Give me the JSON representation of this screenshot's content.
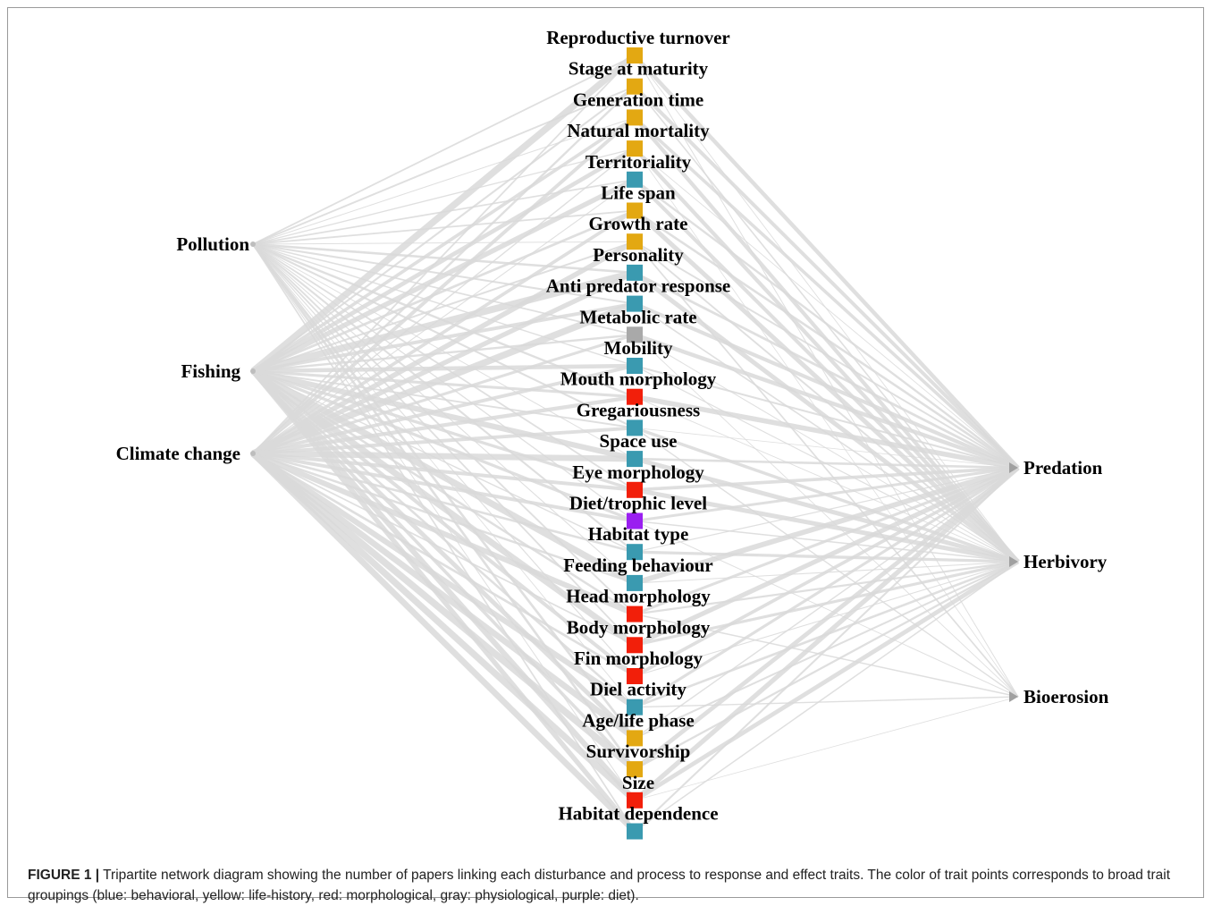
{
  "disturbances": [
    "Pollution",
    "Fishing",
    "Climate change"
  ],
  "processes": [
    "Predation",
    "Herbivory",
    "Bioerosion"
  ],
  "traits": [
    {
      "label": "Reproductive turnover",
      "group": "life-history"
    },
    {
      "label": "Stage at maturity",
      "group": "life-history"
    },
    {
      "label": "Generation time",
      "group": "life-history"
    },
    {
      "label": "Natural mortality",
      "group": "life-history"
    },
    {
      "label": "Territoriality",
      "group": "behavioral"
    },
    {
      "label": "Life span",
      "group": "life-history"
    },
    {
      "label": "Growth rate",
      "group": "life-history"
    },
    {
      "label": "Personality",
      "group": "behavioral"
    },
    {
      "label": "Anti predator response",
      "group": "behavioral"
    },
    {
      "label": "Metabolic rate",
      "group": "physiological"
    },
    {
      "label": "Mobility",
      "group": "behavioral"
    },
    {
      "label": "Mouth morphology",
      "group": "morphological"
    },
    {
      "label": "Gregariousness",
      "group": "behavioral"
    },
    {
      "label": "Space use",
      "group": "behavioral"
    },
    {
      "label": "Eye morphology",
      "group": "morphological"
    },
    {
      "label": "Diet/trophic level",
      "group": "diet"
    },
    {
      "label": "Habitat type",
      "group": "behavioral"
    },
    {
      "label": "Feeding behaviour",
      "group": "behavioral"
    },
    {
      "label": "Head morphology",
      "group": "morphological"
    },
    {
      "label": "Body morphology",
      "group": "morphological"
    },
    {
      "label": "Fin morphology",
      "group": "morphological"
    },
    {
      "label": "Diel activity",
      "group": "behavioral"
    },
    {
      "label": "Age/life phase",
      "group": "life-history"
    },
    {
      "label": "Survivorship",
      "group": "life-history"
    },
    {
      "label": "Size",
      "group": "morphological"
    },
    {
      "label": "Habitat dependence",
      "group": "behavioral"
    }
  ],
  "group_colors": {
    "behavioral": "#3a9ab0",
    "life-history": "#e3a812",
    "morphological": "#f21f0a",
    "physiological": "#a9a9a9",
    "diet": "#9a1ff0"
  },
  "edge_color": "#d9d9d9",
  "caption": {
    "label": "FIGURE 1 |",
    "text": " Tripartite network diagram showing the number of papers linking each disturbance and process to response and effect traits. The color of trait points corresponds to broad trait groupings (blue: behavioral, yellow: life-history, red: morphological, gray: physiological, purple: diet)."
  }
}
